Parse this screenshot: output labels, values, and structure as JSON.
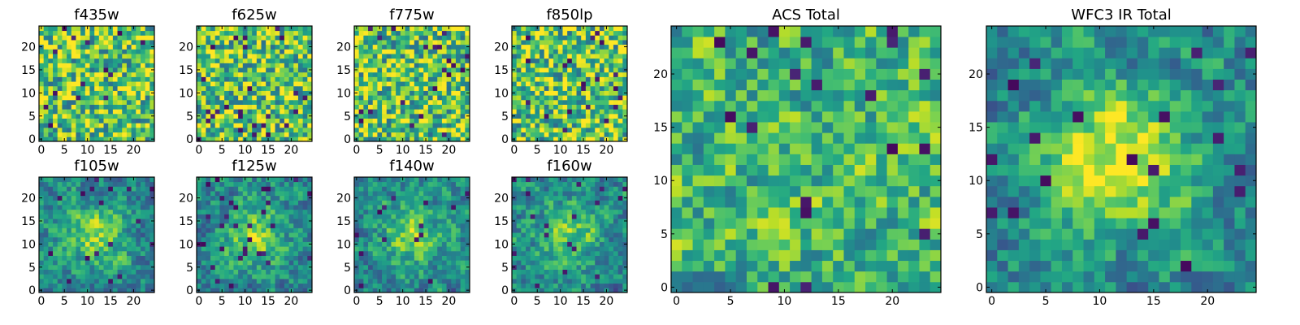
{
  "chart_data": [
    {
      "type": "heatmap",
      "title": "f435w",
      "grid": 25,
      "xticks": [
        0,
        5,
        10,
        15,
        20
      ],
      "yticks": [
        0,
        5,
        10,
        15,
        20
      ],
      "xlim": [
        -0.5,
        24.5
      ],
      "ylim": [
        -0.5,
        24.5
      ],
      "colormap": "viridis",
      "pattern": "noise",
      "seed": 11
    },
    {
      "type": "heatmap",
      "title": "f625w",
      "grid": 25,
      "xticks": [
        0,
        5,
        10,
        15,
        20
      ],
      "yticks": [
        0,
        5,
        10,
        15,
        20
      ],
      "xlim": [
        -0.5,
        24.5
      ],
      "ylim": [
        -0.5,
        24.5
      ],
      "colormap": "viridis",
      "pattern": "noise",
      "seed": 23
    },
    {
      "type": "heatmap",
      "title": "f775w",
      "grid": 25,
      "xticks": [
        0,
        5,
        10,
        15,
        20
      ],
      "yticks": [
        0,
        5,
        10,
        15,
        20
      ],
      "xlim": [
        -0.5,
        24.5
      ],
      "ylim": [
        -0.5,
        24.5
      ],
      "colormap": "viridis",
      "pattern": "noise",
      "seed": 37
    },
    {
      "type": "heatmap",
      "title": "f850lp",
      "grid": 25,
      "xticks": [
        0,
        5,
        10,
        15,
        20
      ],
      "yticks": [
        0,
        5,
        10,
        15,
        20
      ],
      "xlim": [
        -0.5,
        24.5
      ],
      "ylim": [
        -0.5,
        24.5
      ],
      "colormap": "viridis",
      "pattern": "noise",
      "seed": 41
    },
    {
      "type": "heatmap",
      "title": "f105w",
      "grid": 25,
      "xticks": [
        0,
        5,
        10,
        15,
        20
      ],
      "yticks": [
        0,
        5,
        10,
        15,
        20
      ],
      "xlim": [
        -0.5,
        24.5
      ],
      "ylim": [
        -0.5,
        24.5
      ],
      "colormap": "viridis",
      "pattern": "blob",
      "seed": 53
    },
    {
      "type": "heatmap",
      "title": "f125w",
      "grid": 25,
      "xticks": [
        0,
        5,
        10,
        15,
        20
      ],
      "yticks": [
        0,
        5,
        10,
        15,
        20
      ],
      "xlim": [
        -0.5,
        24.5
      ],
      "ylim": [
        -0.5,
        24.5
      ],
      "colormap": "viridis",
      "pattern": "blob",
      "seed": 67
    },
    {
      "type": "heatmap",
      "title": "f140w",
      "grid": 25,
      "xticks": [
        0,
        5,
        10,
        15,
        20
      ],
      "yticks": [
        0,
        5,
        10,
        15,
        20
      ],
      "xlim": [
        -0.5,
        24.5
      ],
      "ylim": [
        -0.5,
        24.5
      ],
      "colormap": "viridis",
      "pattern": "blob",
      "seed": 79
    },
    {
      "type": "heatmap",
      "title": "f160w",
      "grid": 25,
      "xticks": [
        0,
        5,
        10,
        15,
        20
      ],
      "yticks": [
        0,
        5,
        10,
        15,
        20
      ],
      "xlim": [
        -0.5,
        24.5
      ],
      "ylim": [
        -0.5,
        24.5
      ],
      "colormap": "viridis",
      "pattern": "blob",
      "seed": 83
    },
    {
      "type": "heatmap",
      "title": "ACS Total",
      "grid": 25,
      "xticks": [
        0,
        5,
        10,
        15,
        20
      ],
      "yticks": [
        0,
        5,
        10,
        15,
        20
      ],
      "xlim": [
        -0.5,
        24.5
      ],
      "ylim": [
        -0.5,
        24.5
      ],
      "colormap": "viridis",
      "pattern": "noise-smooth",
      "seed": 97
    },
    {
      "type": "heatmap",
      "title": "WFC3 IR Total",
      "grid": 25,
      "xticks": [
        0,
        5,
        10,
        15,
        20
      ],
      "yticks": [
        0,
        5,
        10,
        15,
        20
      ],
      "xlim": [
        -0.5,
        24.5
      ],
      "ylim": [
        -0.5,
        24.5
      ],
      "colormap": "viridis",
      "pattern": "blob-strong",
      "seed": 101
    }
  ]
}
